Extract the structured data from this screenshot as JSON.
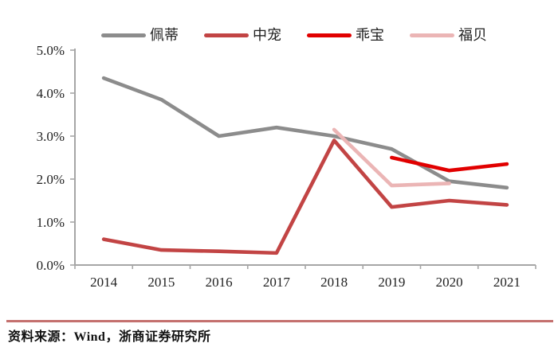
{
  "chart_data": {
    "type": "line",
    "categories": [
      "2014",
      "2015",
      "2016",
      "2017",
      "2018",
      "2019",
      "2020",
      "2021"
    ],
    "series": [
      {
        "name": "佩蒂",
        "color": "#8c8c8c",
        "values": [
          4.35,
          3.85,
          3.0,
          3.2,
          3.0,
          2.7,
          1.95,
          1.8
        ]
      },
      {
        "name": "中宠",
        "color": "#c24444",
        "values": [
          0.6,
          0.35,
          0.32,
          0.28,
          2.9,
          1.35,
          1.5,
          1.4
        ]
      },
      {
        "name": "乖宝",
        "color": "#e10000",
        "values": [
          null,
          null,
          null,
          null,
          null,
          2.5,
          2.2,
          2.35
        ]
      },
      {
        "name": "福贝",
        "color": "#ebb5b5",
        "values": [
          null,
          null,
          null,
          null,
          3.15,
          1.85,
          1.9,
          null
        ]
      }
    ],
    "title": "",
    "xlabel": "",
    "ylabel": "",
    "ylim": [
      0,
      5
    ],
    "ytick_step": 1,
    "ytick_labels": [
      "0.0%",
      "1.0%",
      "2.0%",
      "3.0%",
      "4.0%",
      "5.0%"
    ],
    "grid": false,
    "legend_position": "top",
    "axis_color": "#a6a6a6",
    "text_color": "#1f1f1f"
  },
  "footer": {
    "source_text": "资料来源：Wind，浙商证券研究所"
  }
}
